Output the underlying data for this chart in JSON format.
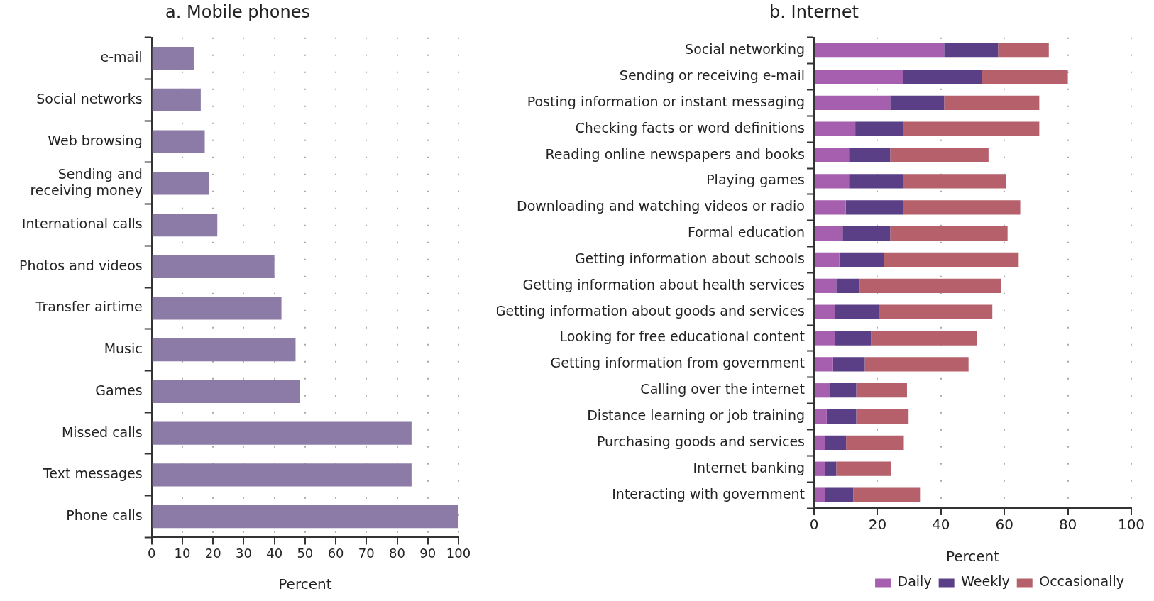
{
  "chart_data": [
    {
      "type": "bar",
      "orientation": "horizontal",
      "title": "a. Mobile phones",
      "xlabel": "Percent",
      "categories": [
        "e-mail",
        "Social networks",
        "Web browsing",
        "Sending and receiving money",
        "International calls",
        "Photos and videos",
        "Transfer airtime",
        "Music",
        "Games",
        "Missed calls",
        "Text messages",
        "Phone calls"
      ],
      "values": [
        13.7,
        16,
        17.3,
        18.7,
        21.4,
        40,
        42.3,
        46.9,
        48.2,
        84.7,
        84.7,
        100
      ],
      "color": "#8c7ba6",
      "xlim": [
        0,
        100
      ],
      "xticks": [
        0,
        10,
        20,
        30,
        40,
        50,
        60,
        70,
        80,
        90,
        100
      ],
      "grid": "x",
      "legend": false
    },
    {
      "type": "bar",
      "orientation": "horizontal",
      "stacked": true,
      "title": "b. Internet",
      "xlabel": "Percent",
      "categories": [
        "Social networking",
        "Sending or receiving e-mail",
        "Posting information or instant messaging",
        "Checking facts or word definitions",
        "Reading online newspapers and books",
        "Playing games",
        "Downloading and watching videos or radio",
        "Formal education",
        "Getting information about schools",
        "Getting information about health services",
        "Getting information about goods and services",
        "Looking for free educational content",
        "Getting information from government",
        "Calling over the internet",
        "Distance learning or job training",
        "Purchasing goods and services",
        "Internet banking",
        "Interacting with government"
      ],
      "series": [
        {
          "name": "Daily",
          "color": "#a65fae",
          "values": [
            41,
            28,
            24,
            13,
            11,
            11,
            10,
            9,
            8,
            7,
            6.5,
            6.5,
            6,
            5,
            4,
            3.4,
            3.4,
            3.4
          ]
        },
        {
          "name": "Weekly",
          "color": "#5a3e86",
          "values": [
            17,
            25,
            17,
            15,
            13,
            17,
            18,
            15,
            14,
            7.4,
            14,
            11.5,
            10,
            8.3,
            9.3,
            6.7,
            3.6,
            9
          ]
        },
        {
          "name": "Occasionally",
          "color": "#b5606a",
          "values": [
            16,
            27,
            30,
            43,
            31,
            32.5,
            37,
            37,
            42.5,
            44.6,
            35.7,
            33.3,
            32.7,
            16,
            16.5,
            18.2,
            17.2,
            21
          ]
        }
      ],
      "xlim": [
        0,
        100
      ],
      "xticks": [
        0,
        20,
        40,
        60,
        80,
        100
      ],
      "grid": "x",
      "legend": "bottom right"
    }
  ]
}
